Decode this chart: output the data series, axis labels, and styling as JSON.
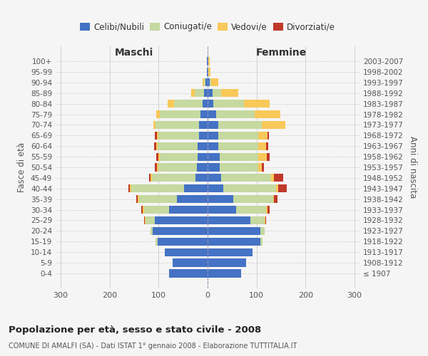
{
  "age_groups": [
    "100+",
    "95-99",
    "90-94",
    "85-89",
    "80-84",
    "75-79",
    "70-74",
    "65-69",
    "60-64",
    "55-59",
    "50-54",
    "45-49",
    "40-44",
    "35-39",
    "30-34",
    "25-29",
    "20-24",
    "15-19",
    "10-14",
    "5-9",
    "0-4"
  ],
  "birth_years": [
    "≤ 1907",
    "1908-1912",
    "1913-1917",
    "1918-1922",
    "1923-1927",
    "1928-1932",
    "1933-1937",
    "1938-1942",
    "1943-1947",
    "1948-1952",
    "1953-1957",
    "1958-1962",
    "1963-1967",
    "1968-1972",
    "1973-1977",
    "1978-1982",
    "1983-1987",
    "1988-1992",
    "1993-1997",
    "1998-2002",
    "2003-2007"
  ],
  "male_celibe": [
    2,
    2,
    4,
    8,
    10,
    15,
    18,
    18,
    20,
    20,
    22,
    25,
    48,
    62,
    78,
    108,
    112,
    102,
    88,
    72,
    78
  ],
  "male_coniugato": [
    0,
    0,
    4,
    18,
    58,
    82,
    88,
    82,
    82,
    78,
    78,
    88,
    108,
    78,
    52,
    18,
    4,
    4,
    0,
    0,
    0
  ],
  "male_vedovo": [
    0,
    0,
    2,
    8,
    14,
    8,
    5,
    4,
    3,
    3,
    3,
    3,
    2,
    2,
    2,
    2,
    0,
    0,
    0,
    0,
    0
  ],
  "male_divorziato": [
    0,
    0,
    0,
    0,
    0,
    0,
    0,
    3,
    4,
    4,
    4,
    4,
    4,
    4,
    3,
    2,
    0,
    0,
    0,
    0,
    0
  ],
  "female_nubile": [
    2,
    2,
    4,
    10,
    12,
    18,
    22,
    22,
    22,
    25,
    25,
    28,
    32,
    52,
    58,
    88,
    108,
    108,
    92,
    78,
    68
  ],
  "female_coniugata": [
    0,
    0,
    4,
    18,
    62,
    78,
    88,
    82,
    82,
    78,
    78,
    102,
    108,
    82,
    62,
    28,
    8,
    4,
    0,
    0,
    0
  ],
  "female_vedova": [
    2,
    4,
    14,
    34,
    52,
    52,
    48,
    18,
    16,
    18,
    8,
    6,
    4,
    2,
    2,
    2,
    0,
    0,
    0,
    0,
    0
  ],
  "female_divorziata": [
    0,
    0,
    0,
    0,
    0,
    0,
    0,
    3,
    4,
    6,
    4,
    18,
    18,
    6,
    4,
    2,
    0,
    0,
    0,
    0,
    0
  ],
  "color_celibe": "#4472C4",
  "color_coniugato": "#C5D9A0",
  "color_vedovo": "#F8C858",
  "color_divorziato": "#C0392B",
  "legend_labels": [
    "Celibi/Nubili",
    "Coniugati/e",
    "Vedovi/e",
    "Divorziati/e"
  ],
  "title_main": "Popolazione per età, sesso e stato civile - 2008",
  "title_sub": "COMUNE DI AMALFI (SA) - Dati ISTAT 1° gennaio 2008 - Elaborazione TUTTITALIA.IT",
  "label_maschi": "Maschi",
  "label_femmine": "Femmine",
  "ylabel_left": "Fasce di età",
  "ylabel_right": "Anni di nascita",
  "xlim": 310,
  "bg_color": "#f5f5f5",
  "grid_color": "#cccccc"
}
